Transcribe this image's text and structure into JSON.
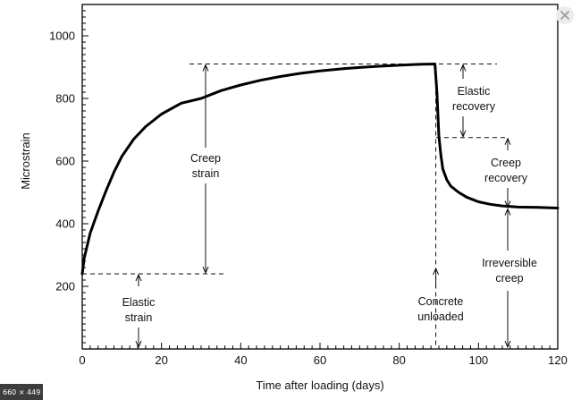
{
  "chart_data": {
    "type": "line",
    "title": "",
    "xlabel": "Time after loading (days)",
    "ylabel": "Microstrain",
    "xlim": [
      0,
      120
    ],
    "ylim": [
      0,
      1100
    ],
    "x_ticks": [
      0,
      20,
      40,
      60,
      80,
      100,
      120
    ],
    "y_ticks": [
      200,
      400,
      600,
      800,
      1000
    ],
    "x_tick_labels": [
      "0",
      "20",
      "40",
      "60",
      "80",
      "100",
      "120"
    ],
    "y_tick_labels": [
      "200",
      "400",
      "600",
      "800",
      "1000"
    ],
    "grid": false,
    "series": [
      {
        "x": [
          0,
          0.5,
          2,
          4,
          6,
          8,
          10,
          13,
          16,
          20,
          25,
          30,
          35,
          40,
          45,
          50,
          55,
          60,
          65,
          70,
          75,
          80,
          85,
          89,
          89.5,
          90,
          90.5,
          91,
          92,
          93,
          95,
          97,
          100,
          103,
          106,
          110,
          115,
          120
        ],
        "y": [
          240,
          290,
          370,
          440,
          505,
          565,
          615,
          670,
          710,
          750,
          785,
          800,
          825,
          843,
          858,
          870,
          880,
          888,
          894,
          899,
          903,
          906,
          909,
          910,
          820,
          680,
          620,
          575,
          540,
          520,
          500,
          485,
          470,
          462,
          457,
          453,
          452,
          450
        ]
      }
    ],
    "reference_levels": {
      "elastic_strain_level": 240,
      "peak_level": 910,
      "after_elastic_recovery_level": 675,
      "final_level": 450,
      "unload_time": 89
    },
    "annotations": [
      {
        "id": "creep-strain",
        "lines": [
          "Creep",
          "strain"
        ]
      },
      {
        "id": "elastic-strain",
        "lines": [
          "Elastic",
          "strain"
        ]
      },
      {
        "id": "elastic-recovery",
        "lines": [
          "Elastic",
          "recovery"
        ]
      },
      {
        "id": "creep-recovery",
        "lines": [
          "Creep",
          "recovery"
        ]
      },
      {
        "id": "irreversible-creep",
        "lines": [
          "Irreversible",
          "creep"
        ]
      },
      {
        "id": "concrete-unloaded",
        "lines": [
          "Concrete",
          "unloaded"
        ]
      }
    ]
  },
  "overlay": {
    "size_badge": "660 × 449",
    "close_glyph": "✕"
  }
}
